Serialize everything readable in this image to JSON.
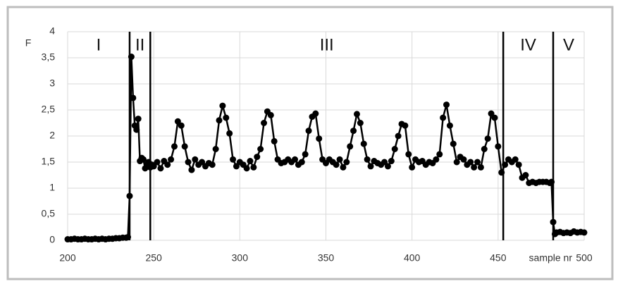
{
  "chart_data": {
    "type": "line",
    "ylabel": "F",
    "xlabel": "sample nr",
    "xlim": [
      200,
      500
    ],
    "xticks": [
      200,
      250,
      300,
      350,
      400,
      450,
      500
    ],
    "ylim": [
      0,
      4
    ],
    "yticks": [
      0,
      {
        "value": 0.5,
        "label": "0,5"
      },
      1,
      {
        "value": 1.5,
        "label": "1,5"
      },
      2,
      {
        "value": 2.5,
        "label": "2,5"
      },
      3,
      {
        "value": 3.5,
        "label": "3,5"
      },
      4
    ],
    "grid": true,
    "dividers": [
      236,
      248,
      453,
      482
    ],
    "regions": [
      "I",
      "II",
      "III",
      "IV",
      "V"
    ],
    "series": [
      {
        "color": "#000000",
        "x": [
          200,
          202,
          204,
          206,
          208,
          210,
          212,
          214,
          216,
          218,
          220,
          222,
          224,
          226,
          228,
          230,
          232,
          234,
          235,
          236,
          237,
          238,
          239,
          240,
          241,
          242,
          243,
          244,
          245,
          246,
          247,
          248,
          249,
          250,
          252,
          254,
          256,
          258,
          260,
          262,
          264,
          266,
          268,
          270,
          272,
          274,
          276,
          278,
          280,
          282,
          284,
          286,
          288,
          290,
          292,
          294,
          296,
          298,
          300,
          302,
          304,
          306,
          308,
          310,
          312,
          314,
          316,
          318,
          320,
          322,
          324,
          326,
          328,
          330,
          332,
          334,
          336,
          338,
          340,
          342,
          344,
          346,
          348,
          350,
          352,
          354,
          356,
          358,
          360,
          362,
          364,
          366,
          368,
          370,
          372,
          374,
          376,
          378,
          380,
          382,
          384,
          386,
          388,
          390,
          392,
          394,
          396,
          398,
          400,
          402,
          404,
          406,
          408,
          410,
          412,
          414,
          416,
          418,
          420,
          422,
          424,
          426,
          428,
          430,
          432,
          434,
          436,
          438,
          440,
          442,
          444,
          446,
          448,
          450,
          452,
          454,
          456,
          458,
          460,
          462,
          464,
          466,
          468,
          470,
          472,
          474,
          476,
          478,
          480,
          481,
          482,
          483,
          484,
          486,
          488,
          490,
          492,
          494,
          496,
          498,
          500
        ],
        "values": [
          0.02,
          0.02,
          0.03,
          0.02,
          0.02,
          0.03,
          0.02,
          0.02,
          0.03,
          0.02,
          0.03,
          0.02,
          0.03,
          0.03,
          0.04,
          0.04,
          0.05,
          0.05,
          0.06,
          0.85,
          3.52,
          2.73,
          2.2,
          2.12,
          2.33,
          1.52,
          1.58,
          1.55,
          1.38,
          1.45,
          1.5,
          1.4,
          1.45,
          1.42,
          1.5,
          1.38,
          1.52,
          1.45,
          1.55,
          1.8,
          2.28,
          2.2,
          1.8,
          1.5,
          1.35,
          1.55,
          1.45,
          1.5,
          1.42,
          1.48,
          1.45,
          1.75,
          2.3,
          2.58,
          2.35,
          2.05,
          1.55,
          1.42,
          1.5,
          1.45,
          1.38,
          1.52,
          1.4,
          1.6,
          1.75,
          2.25,
          2.47,
          2.4,
          1.9,
          1.55,
          1.48,
          1.5,
          1.55,
          1.5,
          1.55,
          1.45,
          1.5,
          1.65,
          2.1,
          2.37,
          2.43,
          1.95,
          1.55,
          1.48,
          1.55,
          1.5,
          1.45,
          1.55,
          1.4,
          1.5,
          1.8,
          2.1,
          2.42,
          2.25,
          1.85,
          1.55,
          1.42,
          1.52,
          1.48,
          1.45,
          1.5,
          1.42,
          1.52,
          1.75,
          2.0,
          2.23,
          2.2,
          1.65,
          1.4,
          1.55,
          1.5,
          1.52,
          1.45,
          1.5,
          1.48,
          1.55,
          1.65,
          2.35,
          2.6,
          2.2,
          1.85,
          1.5,
          1.6,
          1.55,
          1.45,
          1.5,
          1.4,
          1.5,
          1.4,
          1.75,
          1.95,
          2.43,
          2.35,
          1.8,
          1.3,
          1.45,
          1.55,
          1.5,
          1.55,
          1.45,
          1.2,
          1.25,
          1.1,
          1.12,
          1.1,
          1.12,
          1.12,
          1.12,
          1.1,
          1.12,
          0.35,
          0.12,
          0.15,
          0.16,
          0.14,
          0.15,
          0.14,
          0.17,
          0.15,
          0.16,
          0.15
        ]
      }
    ]
  }
}
